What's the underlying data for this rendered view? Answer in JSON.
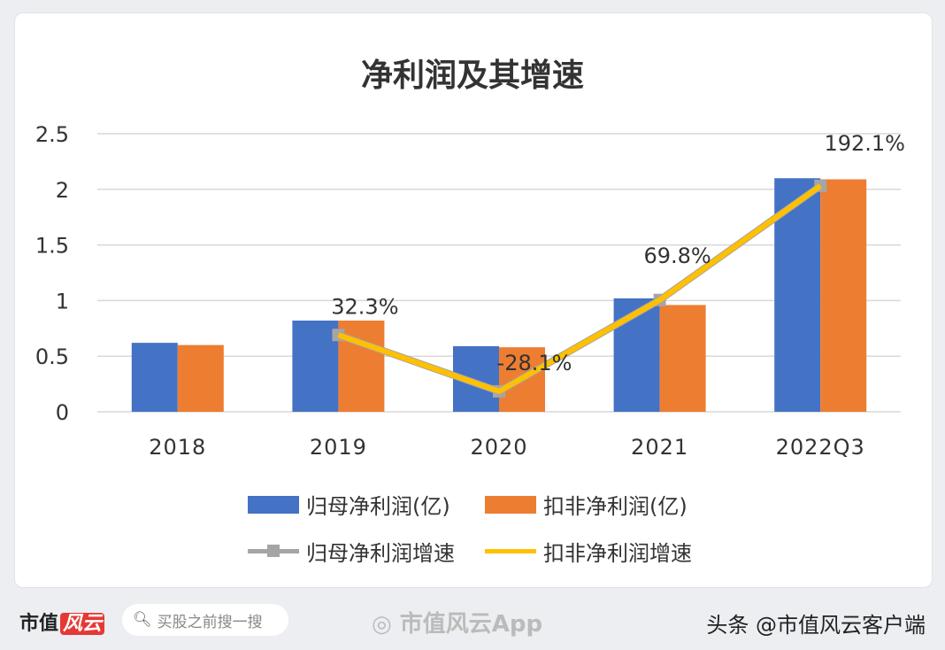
{
  "chart_data": {
    "type": "bar",
    "title": "净利润及其增速",
    "categories": [
      "2018",
      "2019",
      "2020",
      "2021",
      "2022Q3"
    ],
    "ylim": [
      0,
      2.5
    ],
    "yticks": [
      "0",
      "0.5",
      "1",
      "1.5",
      "2",
      "2.5"
    ],
    "grid": true,
    "legend_position": "bottom",
    "series": [
      {
        "name": "归母净利润(亿)",
        "type": "bar",
        "color": "#4472c4",
        "values": [
          0.62,
          0.82,
          0.59,
          1.02,
          2.1
        ]
      },
      {
        "name": "扣非净利润(亿)",
        "type": "bar",
        "color": "#ed7d31",
        "values": [
          0.6,
          0.82,
          0.58,
          0.96,
          2.09
        ]
      },
      {
        "name": "归母净利润增速",
        "type": "line",
        "color": "#a5a5a5",
        "values": [
          null,
          32.3,
          -28.1,
          69.8,
          192.1
        ]
      },
      {
        "name": "扣非净利润增速",
        "type": "line",
        "color": "#ffc000",
        "values": [
          null,
          32.3,
          -28.1,
          69.8,
          192.1
        ]
      }
    ],
    "secondary_ylim": [
      -50,
      248
    ],
    "data_labels": [
      "32.3%",
      "-28.1%",
      "69.8%",
      "192.1%"
    ]
  },
  "footer": {
    "logo": "市值",
    "logo_mark": "风云",
    "search_placeholder": "买股之前搜一搜",
    "weibo_watermark": "市值风云App",
    "credit": "头条 @市值风云客户端"
  }
}
